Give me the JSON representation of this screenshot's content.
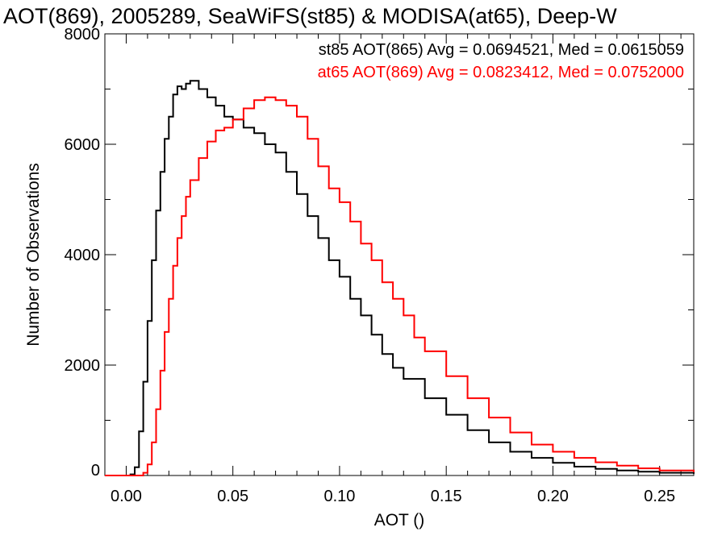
{
  "chart_data": {
    "type": "line",
    "title": "AOT(869), 2005289, SeaWiFS(st85) & MODISA(at65), Deep-W",
    "xlabel": "AOT ()",
    "ylabel": "Number of Observations",
    "xlim": [
      -0.01,
      0.266
    ],
    "ylim": [
      0,
      8000
    ],
    "x_ticks": [
      0.0,
      0.05,
      0.1,
      0.15,
      0.2,
      0.25
    ],
    "x_tick_labels": [
      "0.00",
      "0.05",
      "0.10",
      "0.15",
      "0.20",
      "0.25"
    ],
    "y_ticks": [
      0,
      2000,
      4000,
      6000,
      8000
    ],
    "y_tick_labels": [
      "0",
      "2000",
      "4000",
      "6000",
      "8000"
    ],
    "grid": false,
    "legend_placement": "top-right",
    "colors": {
      "st85": "#000000",
      "at65": "#ff0000"
    },
    "series": [
      {
        "name": "st85",
        "legend_text": "st85 AOT(865) Avg = 0.0694521, Med = 0.0615059",
        "color": "#000000",
        "x": [
          0.0,
          0.002,
          0.004,
          0.006,
          0.008,
          0.01,
          0.012,
          0.014,
          0.016,
          0.018,
          0.02,
          0.022,
          0.024,
          0.026,
          0.028,
          0.03,
          0.034,
          0.038,
          0.042,
          0.046,
          0.05,
          0.055,
          0.06,
          0.065,
          0.07,
          0.075,
          0.08,
          0.085,
          0.09,
          0.095,
          0.1,
          0.105,
          0.11,
          0.115,
          0.12,
          0.125,
          0.13,
          0.14,
          0.15,
          0.16,
          0.17,
          0.18,
          0.19,
          0.2,
          0.21,
          0.22,
          0.23,
          0.24,
          0.25,
          0.266
        ],
        "values": [
          0,
          20,
          150,
          800,
          1700,
          2800,
          3900,
          4800,
          5500,
          6100,
          6500,
          6900,
          7050,
          7000,
          7100,
          7150,
          7000,
          6850,
          6700,
          6500,
          6450,
          6300,
          6200,
          6000,
          5850,
          5500,
          5100,
          4700,
          4300,
          3900,
          3600,
          3200,
          2900,
          2550,
          2200,
          1950,
          1750,
          1400,
          1100,
          820,
          600,
          430,
          320,
          230,
          160,
          120,
          90,
          70,
          50,
          30
        ]
      },
      {
        "name": "at65",
        "legend_text": "at65 AOT(869) Avg = 0.0823412, Med = 0.0752000",
        "color": "#ff0000",
        "x": [
          0.0,
          0.004,
          0.008,
          0.01,
          0.012,
          0.014,
          0.016,
          0.018,
          0.02,
          0.022,
          0.024,
          0.026,
          0.028,
          0.03,
          0.034,
          0.038,
          0.042,
          0.046,
          0.05,
          0.055,
          0.06,
          0.065,
          0.07,
          0.075,
          0.08,
          0.085,
          0.09,
          0.095,
          0.1,
          0.105,
          0.11,
          0.115,
          0.12,
          0.125,
          0.13,
          0.135,
          0.14,
          0.15,
          0.16,
          0.17,
          0.18,
          0.19,
          0.2,
          0.21,
          0.22,
          0.23,
          0.24,
          0.25,
          0.266
        ],
        "values": [
          0,
          0,
          50,
          200,
          600,
          1200,
          1900,
          2600,
          3200,
          3800,
          4300,
          4700,
          5050,
          5350,
          5750,
          6050,
          6250,
          6300,
          6450,
          6650,
          6800,
          6850,
          6800,
          6700,
          6500,
          6100,
          5600,
          5200,
          4950,
          4600,
          4200,
          3900,
          3500,
          3200,
          2900,
          2500,
          2250,
          1800,
          1400,
          1050,
          780,
          560,
          430,
          320,
          240,
          180,
          130,
          90,
          60
        ]
      }
    ]
  }
}
